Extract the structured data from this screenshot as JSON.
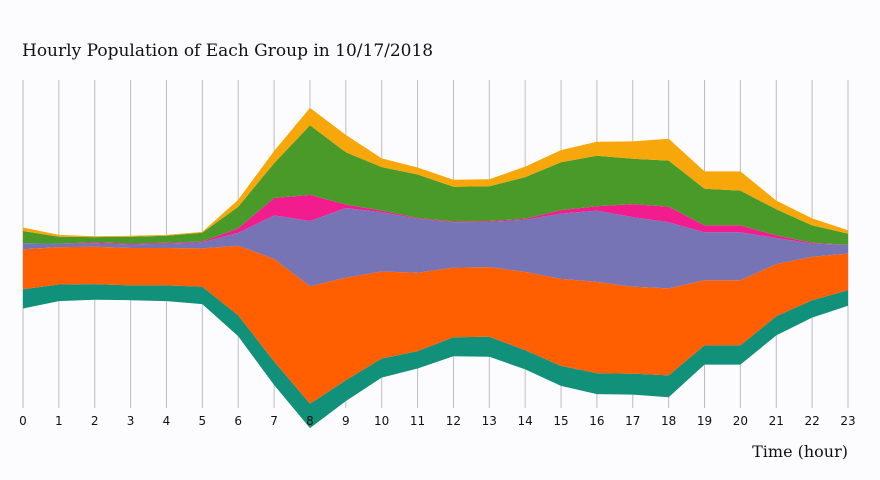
{
  "chart_data": {
    "type": "area",
    "title": "Hourly Population of Each Group in 10/17/2018",
    "xlabel": "Time (hour)",
    "ylabel": "",
    "x": [
      0,
      1,
      2,
      3,
      4,
      5,
      6,
      7,
      8,
      9,
      10,
      11,
      12,
      13,
      14,
      15,
      16,
      17,
      18,
      19,
      20,
      21,
      22,
      23
    ],
    "x_tick_labels": [
      "0",
      "1",
      "2",
      "3",
      "4",
      "5",
      "6",
      "7",
      "8",
      "9",
      "10",
      "11",
      "12",
      "13",
      "14",
      "15",
      "16",
      "17",
      "18",
      "19",
      "20",
      "21",
      "22",
      "23"
    ],
    "layout": "streamgraph",
    "grid": "vertical",
    "series": [
      {
        "color": "#11907a",
        "values": [
          22,
          19,
          18,
          17,
          18,
          20,
          24,
          27,
          28,
          24,
          22,
          20,
          22,
          23,
          22,
          23,
          24,
          24,
          25,
          22,
          22,
          22,
          20,
          18
        ]
      },
      {
        "color": "#ff5f00",
        "values": [
          46,
          43,
          43,
          43,
          43,
          44,
          80,
          118,
          135,
          118,
          100,
          90,
          80,
          80,
          90,
          100,
          105,
          100,
          100,
          75,
          75,
          60,
          50,
          42
        ]
      },
      {
        "color": "#7674b5",
        "values": [
          7,
          4,
          4,
          4,
          5,
          7,
          15,
          50,
          75,
          80,
          68,
          62,
          52,
          52,
          60,
          75,
          82,
          80,
          76,
          55,
          55,
          30,
          15,
          10
        ]
      },
      {
        "color": "#f21c8f",
        "values": [
          0,
          0,
          1,
          1,
          1,
          1,
          5,
          20,
          30,
          4,
          2,
          1,
          1,
          1,
          1,
          4,
          5,
          15,
          18,
          8,
          8,
          3,
          1,
          0
        ]
      },
      {
        "color": "#4a9a2a",
        "values": [
          14,
          8,
          6,
          8,
          8,
          10,
          25,
          40,
          80,
          60,
          50,
          50,
          40,
          40,
          48,
          55,
          58,
          52,
          53,
          42,
          40,
          30,
          20,
          13
        ]
      },
      {
        "color": "#f7a70a",
        "values": [
          4,
          2,
          1,
          1,
          1,
          1,
          8,
          14,
          20,
          20,
          10,
          8,
          8,
          8,
          12,
          14,
          16,
          20,
          25,
          20,
          22,
          10,
          8,
          4
        ]
      }
    ]
  }
}
